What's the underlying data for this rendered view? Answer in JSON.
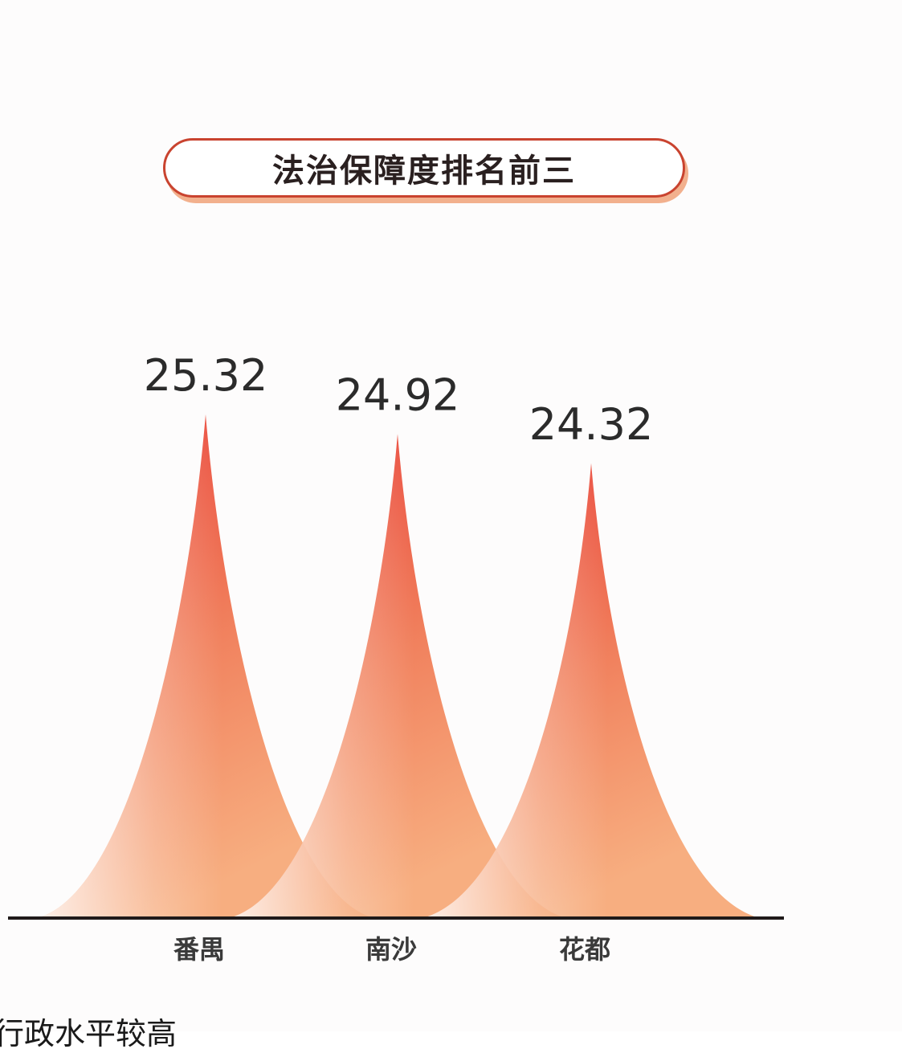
{
  "title": "法治保障度排名前三",
  "chart_data": {
    "type": "bar",
    "title": "法治保障度排名前三",
    "categories": [
      "番禺",
      "南沙",
      "花都"
    ],
    "values": [
      25.32,
      24.92,
      24.32
    ],
    "value_labels": [
      "25.32",
      "24.92",
      "24.32"
    ],
    "xlabel": "",
    "ylabel": "",
    "grid": false,
    "legend": "none",
    "colors": {
      "peak_top": "#e8362e",
      "peak_mid": "#f07a55",
      "peak_base": "#f6a06a",
      "baseline": "#1f1a1a"
    }
  },
  "footer": {
    "text": "行政水平较高"
  }
}
